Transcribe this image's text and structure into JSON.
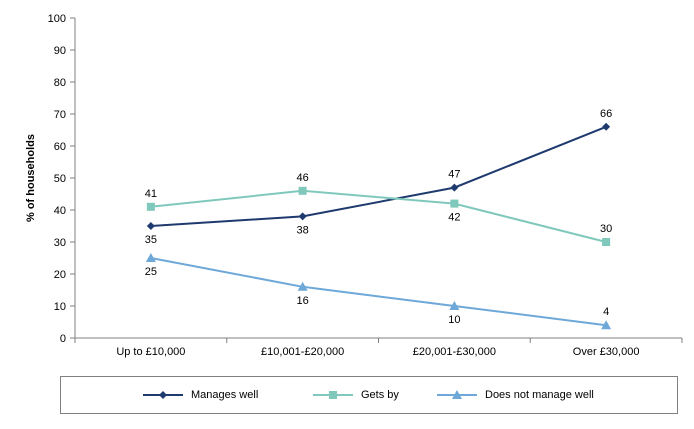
{
  "chart_data": {
    "type": "line",
    "title": "",
    "xlabel": "",
    "ylabel": "% of households",
    "ylim": [
      0,
      100
    ],
    "yticks": [
      0,
      10,
      20,
      30,
      40,
      50,
      60,
      70,
      80,
      90,
      100
    ],
    "categories": [
      "Up to £10,000",
      "£10,001-£20,000",
      "£20,001-£30,000",
      "Over £30,000"
    ],
    "grid": false,
    "legend_position": "bottom",
    "series": [
      {
        "name": "Manages well",
        "values": [
          35,
          38,
          47,
          66
        ],
        "color": "#1f3a6e",
        "marker": "diamond",
        "label_position": [
          "below",
          "below",
          "above",
          "above"
        ]
      },
      {
        "name": "Gets by",
        "values": [
          41,
          46,
          42,
          30
        ],
        "color": "#7fc8bb",
        "marker": "square",
        "label_position": [
          "above",
          "above",
          "below",
          "above"
        ]
      },
      {
        "name": "Does not manage well",
        "values": [
          25,
          16,
          10,
          4
        ],
        "color": "#6ea8d8",
        "marker": "triangle",
        "label_position": [
          "below",
          "below",
          "below",
          "above"
        ]
      }
    ]
  }
}
